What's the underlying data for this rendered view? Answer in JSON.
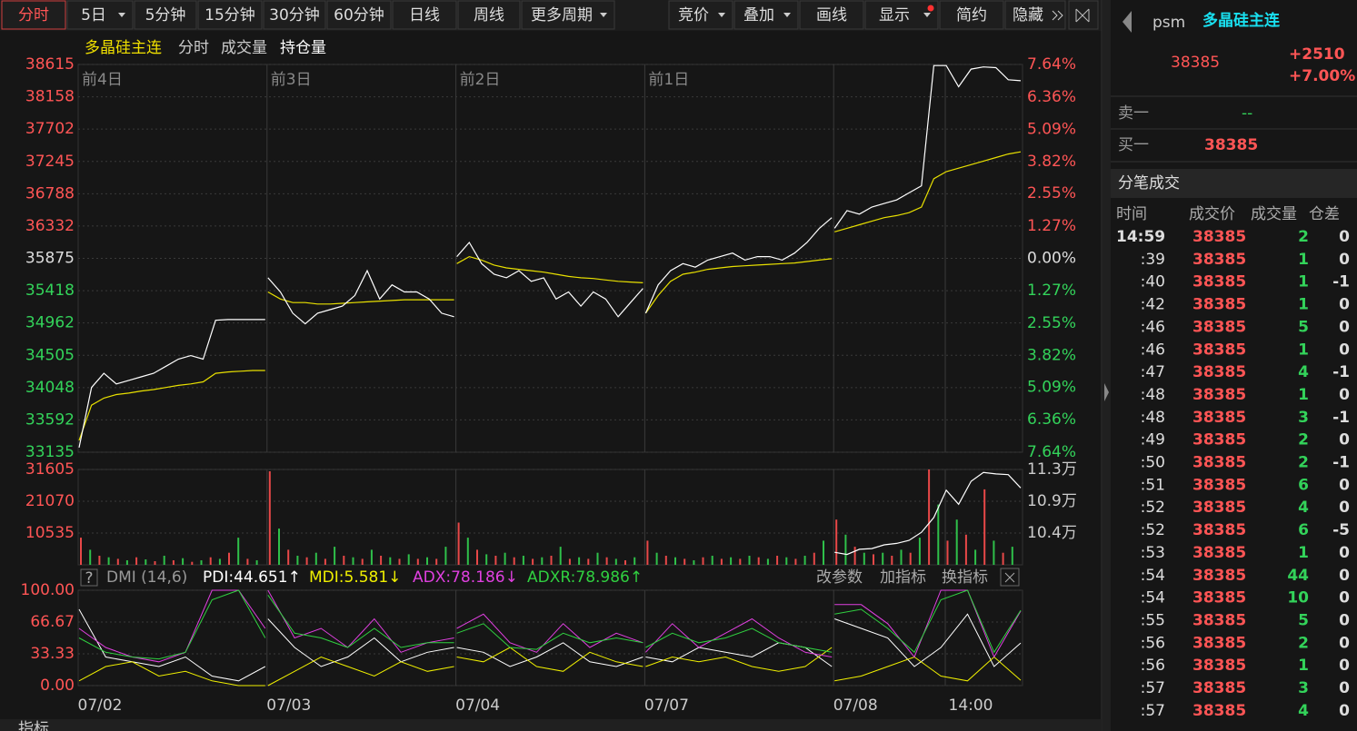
{
  "toolbar": {
    "periods": [
      "分时",
      "5日",
      "5分钟",
      "15分钟",
      "30分钟",
      "60分钟",
      "日线",
      "周线",
      "更多周期"
    ],
    "tools": [
      "竞价",
      "叠加",
      "画线",
      "显示",
      "简约",
      "隐藏"
    ]
  },
  "chart_data": [
    {
      "type": "line",
      "title": "多晶硅主连",
      "labels": [
        "分时",
        "成交量",
        "持仓量"
      ],
      "day_labels": [
        "前4日",
        "前3日",
        "前2日",
        "前1日"
      ],
      "categories": [
        "07/02",
        "07/03",
        "07/04",
        "07/07",
        "07/08"
      ],
      "time_label": "14:00",
      "series": [
        {
          "name": "多晶硅主连",
          "color": "#ffffff",
          "values": [
            [
              33200,
              34050,
              34250,
              34100,
              34150,
              34200,
              34250,
              34350,
              34450,
              34500,
              34450,
              35000,
              35010,
              35010,
              35010,
              35010
            ],
            [
              35600,
              35400,
              35100,
              34950,
              35100,
              35150,
              35200,
              35350,
              35700,
              35300,
              35500,
              35400,
              35400,
              35300,
              35100,
              35050
            ],
            [
              35900,
              36100,
              35800,
              35650,
              35600,
              35700,
              35550,
              35600,
              35300,
              35400,
              35200,
              35400,
              35300,
              35050,
              35250,
              35450
            ],
            [
              35100,
              35500,
              35700,
              35800,
              35750,
              35850,
              35900,
              35950,
              35850,
              35900,
              35900,
              35850,
              35950,
              36100,
              36300,
              36450
            ],
            [
              36300,
              36550,
              36500,
              36600,
              36650,
              36700,
              36800,
              36900,
              38600,
              38600,
              38300,
              38550,
              38580,
              38570,
              38400,
              38385
            ]
          ]
        },
        {
          "color": "#e8e000",
          "values": [
            [
              33300,
              33800,
              33900,
              33950,
              33970,
              34000,
              34020,
              34050,
              34080,
              34100,
              34130,
              34250,
              34270,
              34280,
              34290,
              34290
            ],
            [
              35400,
              35300,
              35250,
              35250,
              35230,
              35230,
              35240,
              35250,
              35260,
              35270,
              35280,
              35290,
              35290,
              35290,
              35290,
              35290
            ],
            [
              35800,
              35900,
              35850,
              35780,
              35740,
              35720,
              35700,
              35680,
              35650,
              35620,
              35600,
              35590,
              35570,
              35550,
              35540,
              35530
            ],
            [
              35100,
              35350,
              35550,
              35650,
              35680,
              35720,
              35740,
              35760,
              35770,
              35780,
              35790,
              35800,
              35810,
              35830,
              35850,
              35870
            ],
            [
              36250,
              36300,
              36350,
              36400,
              36450,
              36480,
              36520,
              36600,
              37000,
              37100,
              37150,
              37200,
              37250,
              37300,
              37350,
              37380
            ]
          ]
        }
      ],
      "ylim": [
        33135,
        38615
      ],
      "yticks": [
        33135,
        33592,
        34048,
        34505,
        34962,
        35418,
        35875,
        36332,
        36788,
        37245,
        37702,
        38158,
        38615
      ],
      "y2lim": [
        -7.64,
        7.64
      ],
      "y2ticks": [
        {
          "value": -7.64,
          "label": "7.64%"
        },
        {
          "value": -6.36,
          "label": "6.36%"
        },
        {
          "value": -5.09,
          "label": "5.09%"
        },
        {
          "value": -3.82,
          "label": "3.82%"
        },
        {
          "value": -2.55,
          "label": "2.55%"
        },
        {
          "value": -1.27,
          "label": "1.27%"
        },
        {
          "value": 0,
          "label": "0.00%"
        },
        {
          "value": 1.27,
          "label": "1.27%"
        },
        {
          "value": 2.55,
          "label": "2.55%"
        },
        {
          "value": 3.82,
          "label": "3.82%"
        },
        {
          "value": 5.09,
          "label": "5.09%"
        },
        {
          "value": 6.36,
          "label": "6.36%"
        },
        {
          "value": 7.64,
          "label": "7.64%"
        }
      ],
      "up_color": "#ff5555",
      "down_color": "#33d35a",
      "flat_color": "#dddddd",
      "grid": true
    },
    {
      "type": "bar",
      "series": [
        {
          "colors": [
            "#e84848",
            "#2fc04a"
          ],
          "values": [
            [
              9000,
              5000,
              3000,
              2500,
              2000,
              1500,
              2500,
              1800,
              1200,
              3000,
              1500,
              2200,
              1000,
              1500,
              2500,
              2000,
              4000,
              9000,
              2000,
              1500
            ],
            [
              31000,
              12000,
              5000,
              3000,
              2500,
              4000,
              2000,
              6000,
              3000,
              2500,
              2000,
              5000,
              3000,
              2500,
              2000,
              3500,
              2000,
              2500,
              2000,
              6000
            ],
            [
              14000,
              9000,
              5000,
              3500,
              3000,
              4000,
              2500,
              3000,
              2000,
              2500,
              3000,
              6000,
              2000,
              2500,
              2000,
              4000,
              2500,
              2000,
              1500,
              2500
            ],
            [
              8000,
              4000,
              3000,
              2500,
              2000,
              1500,
              2500,
              3000,
              2000,
              2500,
              2000,
              3000,
              2500,
              2000,
              3000,
              2500,
              2000,
              3000,
              4000,
              8000
            ],
            [
              15000,
              10000,
              6000,
              4000,
              3500,
              4000,
              3000,
              5000,
              4000,
              9000,
              31605,
              20000,
              8000,
              15000,
              10000,
              5000,
              25000,
              8000,
              4000,
              6000
            ]
          ]
        },
        {
          "axis": "y2",
          "color": "#ffffff",
          "values": [
            [],
            [],
            [],
            [],
            [
              101800,
              101500,
              102200,
              102300,
              102800,
              103000,
              103400,
              104500,
              106500,
              110200,
              108300,
              111400,
              112600,
              112400,
              112300,
              110500
            ]
          ]
        }
      ],
      "ylim": [
        0,
        31605
      ],
      "yticks": [
        10535,
        21070,
        31605
      ],
      "y2lim": [
        100100,
        113000
      ],
      "y2ticks": [
        {
          "value": 104400,
          "label": "10.4万"
        },
        {
          "value": 108700,
          "label": "10.9万"
        },
        {
          "value": 113000,
          "label": "11.3万"
        }
      ],
      "left_color": "#ff5555",
      "right_color": "#cccccc",
      "grid": true
    },
    {
      "type": "line",
      "title": "DMI (14,6)",
      "buttons": [
        "改参数",
        "加指标",
        "换指标"
      ],
      "series": [
        {
          "name": "PDI:44.651↑",
          "color": "#ffffff",
          "values": [
            [
              80,
              30,
              25,
              20,
              30,
              10,
              5,
              20
            ],
            [
              70,
              40,
              20,
              30,
              50,
              25,
              35,
              40
            ],
            [
              40,
              35,
              20,
              30,
              45,
              25,
              20,
              30
            ],
            [
              30,
              25,
              40,
              35,
              30,
              45,
              40,
              20
            ],
            [
              70,
              60,
              50,
              20,
              40,
              75,
              20,
              44.651
            ]
          ]
        },
        {
          "name": "MDI:5.581↓",
          "color": "#f0f000",
          "values": [
            [
              5,
              20,
              25,
              10,
              15,
              5,
              0,
              0
            ],
            [
              0,
              15,
              30,
              20,
              10,
              25,
              15,
              20
            ],
            [
              30,
              25,
              40,
              20,
              15,
              35,
              25,
              20
            ],
            [
              20,
              30,
              25,
              30,
              20,
              15,
              20,
              40
            ],
            [
              5,
              10,
              20,
              30,
              10,
              5,
              30,
              5.581
            ]
          ]
        },
        {
          "name": "ADX:78.186↓",
          "color": "#e040e0",
          "values": [
            [
              60,
              40,
              30,
              25,
              35,
              100,
              100,
              60
            ],
            [
              100,
              50,
              60,
              40,
              70,
              35,
              45,
              50
            ],
            [
              60,
              75,
              45,
              35,
              65,
              40,
              55,
              45
            ],
            [
              35,
              65,
              40,
              55,
              70,
              50,
              35,
              30
            ],
            [
              85,
              85,
              65,
              30,
              100,
              100,
              30,
              78.186
            ]
          ]
        },
        {
          "name": "ADXR:78.986↑",
          "color": "#30d040",
          "values": [
            [
              50,
              35,
              30,
              28,
              35,
              90,
              100,
              50
            ],
            [
              95,
              55,
              50,
              40,
              60,
              40,
              45,
              45
            ],
            [
              55,
              65,
              40,
              38,
              55,
              45,
              50,
              45
            ],
            [
              40,
              55,
              45,
              50,
              60,
              45,
              40,
              35
            ],
            [
              75,
              80,
              60,
              35,
              90,
              100,
              35,
              78.986
            ]
          ]
        }
      ],
      "ylim": [
        0,
        100
      ],
      "yticks": [
        {
          "value": 0,
          "label": "0.00"
        },
        {
          "value": 33.33,
          "label": "33.33"
        },
        {
          "value": 66.67,
          "label": "66.67"
        },
        {
          "value": 100,
          "label": "100.00"
        }
      ],
      "tick_color": "#ff5555",
      "grid": true
    }
  ],
  "quote": {
    "code": "psm",
    "name": "多晶硅主连",
    "price": 38385,
    "change": "+2510",
    "change_pct": "+7.00%",
    "ask_label": "卖一",
    "ask": "--",
    "bid_label": "买一",
    "bid": 38385
  },
  "trades": {
    "title": "分笔成交",
    "headers": [
      "时间",
      "成交价",
      "成交量",
      "仓差"
    ],
    "rows": [
      [
        "14:59",
        38385,
        2,
        0
      ],
      [
        ":39",
        38385,
        1,
        0
      ],
      [
        ":40",
        38385,
        1,
        -1
      ],
      [
        ":42",
        38385,
        1,
        0
      ],
      [
        ":46",
        38385,
        5,
        0
      ],
      [
        ":46",
        38385,
        1,
        0
      ],
      [
        ":47",
        38385,
        4,
        -1
      ],
      [
        ":48",
        38385,
        1,
        0
      ],
      [
        ":48",
        38385,
        3,
        -1
      ],
      [
        ":49",
        38385,
        2,
        0
      ],
      [
        ":50",
        38385,
        2,
        -1
      ],
      [
        ":51",
        38385,
        6,
        0
      ],
      [
        ":52",
        38385,
        4,
        0
      ],
      [
        ":52",
        38385,
        6,
        -5
      ],
      [
        ":53",
        38385,
        1,
        0
      ],
      [
        ":54",
        38385,
        44,
        0
      ],
      [
        ":54",
        38385,
        10,
        0
      ],
      [
        ":55",
        38385,
        5,
        0
      ],
      [
        ":56",
        38385,
        2,
        0
      ],
      [
        ":56",
        38385,
        1,
        0
      ],
      [
        ":57",
        38385,
        3,
        0
      ],
      [
        ":57",
        38385,
        4,
        0
      ]
    ]
  },
  "bottom_tabs": [
    "指标"
  ]
}
